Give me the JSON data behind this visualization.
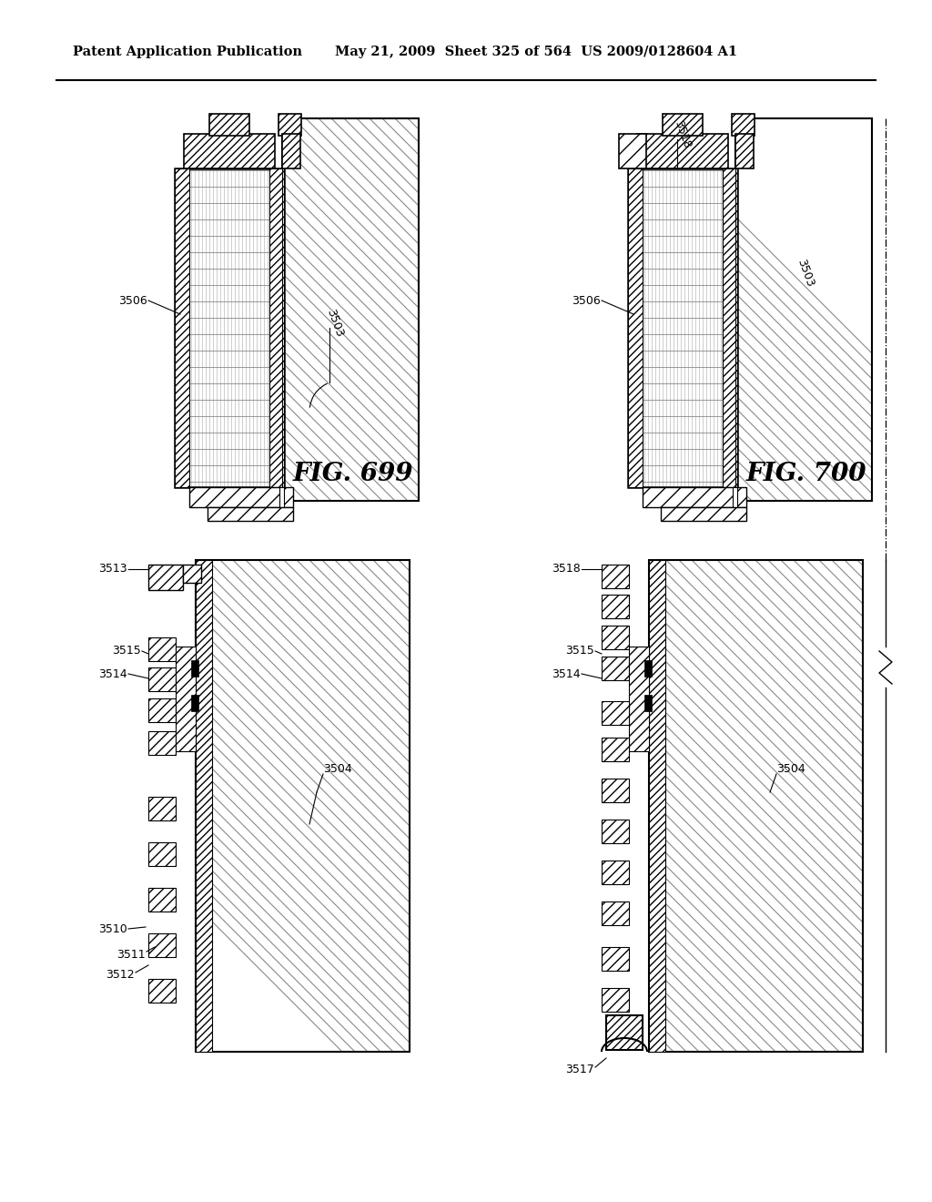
{
  "header_left": "Patent Application Publication",
  "header_right": "May 21, 2009  Sheet 325 of 564  US 2009/0128604 A1",
  "fig699": "FIG. 699",
  "fig700": "FIG. 700",
  "bg": "#ffffff"
}
